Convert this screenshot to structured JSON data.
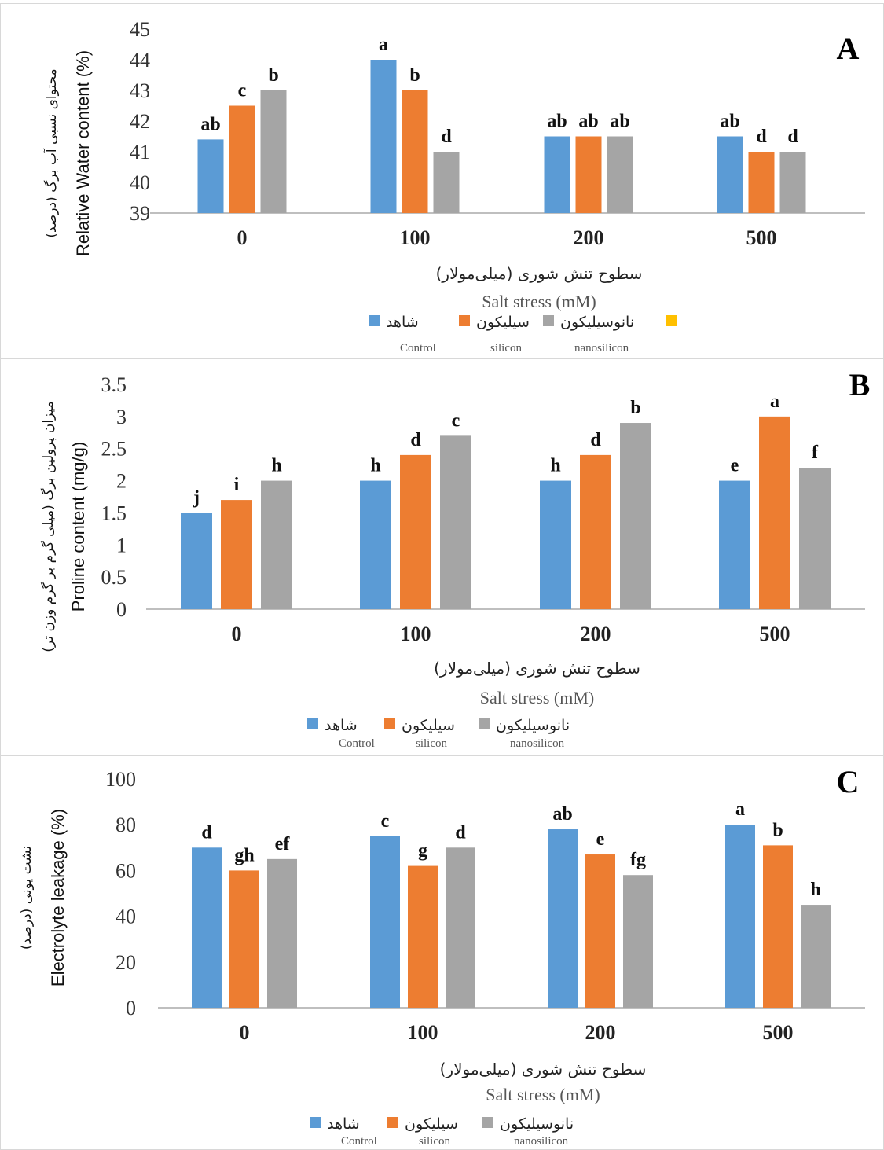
{
  "colors": {
    "control": "#5b9bd5",
    "silicon": "#ed7d31",
    "nanosilicon": "#a5a5a5",
    "extra": "#ffc000",
    "axis": "#bfbfbf"
  },
  "legend": {
    "fa": [
      "شاهد",
      "سیلیکون",
      "نانوسیلیکون"
    ],
    "en": [
      "Control",
      "silicon",
      "nanosilicon"
    ]
  },
  "chart_data": [
    {
      "panel": "A",
      "type": "bar",
      "categories": [
        "0",
        "100",
        "200",
        "500"
      ],
      "xlabel_fa": "سطوح تنش شوری (میلی‌مولار)",
      "xlabel": "Salt stress (mM)",
      "ylabel": "Relative Water content (%)",
      "ylabel_fa": "محتوای نسبی آب برگ (درصد)",
      "ylim": [
        39,
        45
      ],
      "yticks": [
        "39",
        "40",
        "41",
        "42",
        "43",
        "44",
        "45"
      ],
      "series": [
        {
          "name": "Control",
          "values": [
            41.4,
            44.0,
            41.5,
            41.5
          ],
          "letters": [
            "ab",
            "a",
            "ab",
            "ab"
          ]
        },
        {
          "name": "silicon",
          "values": [
            42.5,
            43.0,
            41.5,
            41.0
          ],
          "letters": [
            "c",
            "b",
            "ab",
            "d"
          ]
        },
        {
          "name": "nanosilicon",
          "values": [
            43.0,
            41.0,
            41.5,
            41.0
          ],
          "letters": [
            "b",
            "d",
            "ab",
            "d"
          ]
        }
      ],
      "legend_placement": "bottom",
      "grid": false
    },
    {
      "panel": "B",
      "type": "bar",
      "categories": [
        "0",
        "100",
        "200",
        "500"
      ],
      "xlabel_fa": "سطوح تنش شوری (میلی‌مولار)",
      "xlabel": "Salt stress (mM)",
      "ylabel": "Proline content (mg/g)",
      "ylabel_fa": "میزان پرولین برگ (میلی گرم بر گرم وزن تر)",
      "ylim": [
        0,
        3.5
      ],
      "yticks": [
        "0",
        "0.5",
        "1",
        "1.5",
        "2",
        "2.5",
        "3",
        "3.5"
      ],
      "series": [
        {
          "name": "Control",
          "values": [
            1.5,
            2.0,
            2.0,
            2.0
          ],
          "letters": [
            "j",
            "h",
            "h",
            "e"
          ]
        },
        {
          "name": "silicon",
          "values": [
            1.7,
            2.4,
            2.4,
            3.0
          ],
          "letters": [
            "i",
            "d",
            "d",
            "a"
          ]
        },
        {
          "name": "nanosilicon",
          "values": [
            2.0,
            2.7,
            2.9,
            2.2
          ],
          "letters": [
            "h",
            "c",
            "b",
            "f"
          ]
        }
      ],
      "legend_placement": "bottom",
      "grid": false
    },
    {
      "panel": "C",
      "type": "bar",
      "categories": [
        "0",
        "100",
        "200",
        "500"
      ],
      "xlabel_fa": "سطوح تنش شوری (میلی‌مولار)",
      "xlabel": "Salt stress (mM)",
      "ylabel": "Electrolyte leakage (%)",
      "ylabel_fa": "نشت یونی (درصد)",
      "ylim": [
        0,
        100
      ],
      "yticks": [
        "0",
        "20",
        "40",
        "60",
        "80",
        "100"
      ],
      "series": [
        {
          "name": "Control",
          "values": [
            70,
            75,
            78,
            80
          ],
          "letters": [
            "d",
            "c",
            "ab",
            "a"
          ]
        },
        {
          "name": "silicon",
          "values": [
            60,
            62,
            67,
            71
          ],
          "letters": [
            "gh",
            "g",
            "e",
            "b"
          ]
        },
        {
          "name": "nanosilicon",
          "values": [
            65,
            70,
            58,
            45
          ],
          "letters": [
            "ef",
            "d",
            "fg",
            "h"
          ]
        }
      ],
      "legend_placement": "bottom",
      "grid": false
    }
  ]
}
